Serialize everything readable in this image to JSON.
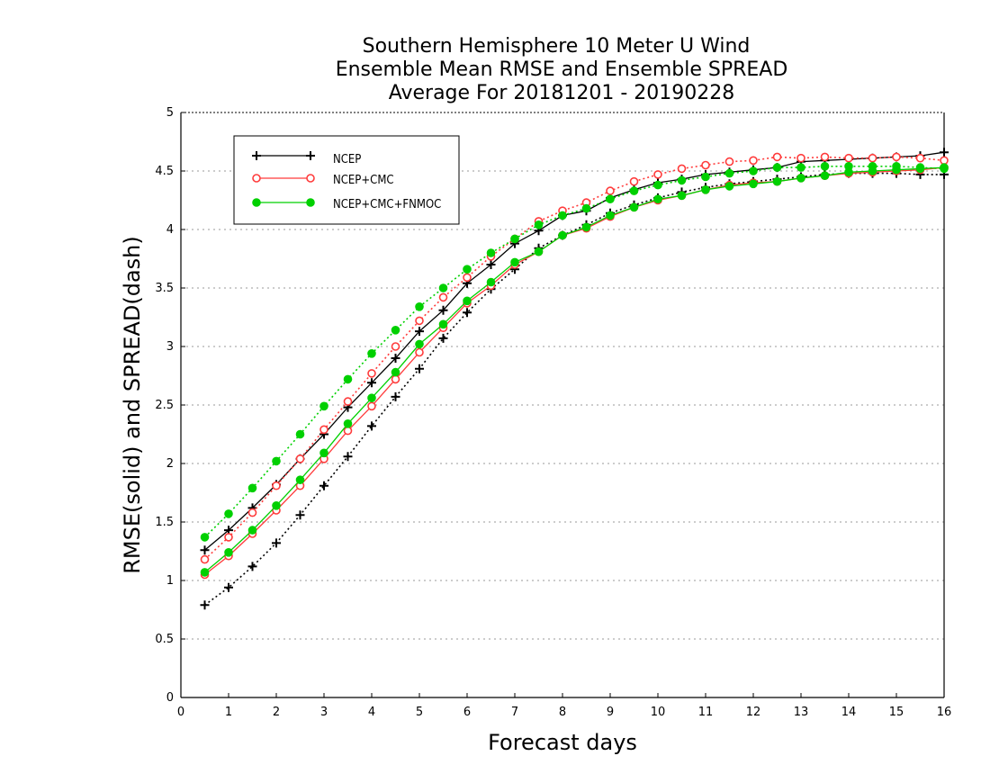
{
  "chart_data": {
    "type": "line",
    "title": [
      "Southern Hemisphere 10 Meter U Wind",
      "Ensemble Mean RMSE and Ensemble SPREAD",
      "Average For 20181201 - 20190228"
    ],
    "xlabel": "Forecast days",
    "ylabel": "RMSE(solid) and SPREAD(dash)",
    "xlim": [
      0,
      16
    ],
    "ylim": [
      0,
      5
    ],
    "xticks": [
      0,
      1,
      2,
      3,
      4,
      5,
      6,
      7,
      8,
      9,
      10,
      11,
      12,
      13,
      14,
      15,
      16
    ],
    "yticks": [
      0,
      0.5,
      1,
      1.5,
      2,
      2.5,
      3,
      3.5,
      4,
      4.5,
      5
    ],
    "grid": "horizontal dotted",
    "legend_position": "top-left",
    "x": [
      0.5,
      1,
      1.5,
      2,
      2.5,
      3,
      3.5,
      4,
      4.5,
      5,
      5.5,
      6,
      6.5,
      7,
      7.5,
      8,
      8.5,
      9,
      9.5,
      10,
      10.5,
      11,
      11.5,
      12,
      12.5,
      13,
      13.5,
      14,
      14.5,
      15,
      15.5,
      16
    ],
    "series": [
      {
        "name": "NCEP",
        "color": "#000000",
        "marker": "plus",
        "rmse": [
          1.26,
          1.43,
          1.62,
          1.82,
          2.04,
          2.25,
          2.48,
          2.69,
          2.9,
          3.13,
          3.31,
          3.54,
          3.7,
          3.88,
          3.99,
          4.12,
          4.16,
          4.27,
          4.34,
          4.4,
          4.43,
          4.47,
          4.49,
          4.51,
          4.53,
          4.58,
          4.59,
          4.6,
          4.61,
          4.62,
          4.63,
          4.66
        ],
        "spread": [
          0.79,
          0.94,
          1.12,
          1.32,
          1.56,
          1.81,
          2.06,
          2.32,
          2.57,
          2.81,
          3.07,
          3.29,
          3.49,
          3.66,
          3.84,
          3.95,
          4.04,
          4.14,
          4.21,
          4.27,
          4.32,
          4.36,
          4.39,
          4.41,
          4.43,
          4.45,
          4.47,
          4.48,
          4.48,
          4.48,
          4.47,
          4.47
        ]
      },
      {
        "name": "NCEP+CMC",
        "color": "#ff3b3b",
        "marker": "open-circle",
        "rmse": [
          1.05,
          1.21,
          1.4,
          1.6,
          1.81,
          2.04,
          2.28,
          2.49,
          2.72,
          2.95,
          3.16,
          3.37,
          3.52,
          3.7,
          3.81,
          3.95,
          4.01,
          4.11,
          4.19,
          4.25,
          4.29,
          4.34,
          4.38,
          4.4,
          4.41,
          4.44,
          4.46,
          4.48,
          4.49,
          4.5,
          4.51,
          4.53
        ],
        "spread": [
          1.18,
          1.37,
          1.58,
          1.81,
          2.04,
          2.29,
          2.53,
          2.77,
          3.0,
          3.22,
          3.42,
          3.59,
          3.77,
          3.92,
          4.07,
          4.16,
          4.23,
          4.33,
          4.41,
          4.47,
          4.52,
          4.55,
          4.58,
          4.59,
          4.62,
          4.61,
          4.62,
          4.61,
          4.61,
          4.62,
          4.61,
          4.59
        ]
      },
      {
        "name": "NCEP+CMC+FNMOC",
        "color": "#00d000",
        "marker": "filled-circle",
        "rmse": [
          1.07,
          1.24,
          1.43,
          1.64,
          1.86,
          2.09,
          2.34,
          2.56,
          2.78,
          3.02,
          3.19,
          3.39,
          3.55,
          3.72,
          3.81,
          3.95,
          4.02,
          4.12,
          4.19,
          4.26,
          4.29,
          4.34,
          4.37,
          4.39,
          4.41,
          4.44,
          4.46,
          4.49,
          4.5,
          4.51,
          4.52,
          4.53
        ],
        "spread": [
          1.37,
          1.57,
          1.79,
          2.02,
          2.25,
          2.49,
          2.72,
          2.94,
          3.14,
          3.34,
          3.5,
          3.66,
          3.8,
          3.92,
          4.04,
          4.12,
          4.18,
          4.26,
          4.33,
          4.38,
          4.42,
          4.45,
          4.48,
          4.5,
          4.53,
          4.53,
          4.54,
          4.54,
          4.54,
          4.54,
          4.53,
          4.52
        ]
      }
    ]
  }
}
